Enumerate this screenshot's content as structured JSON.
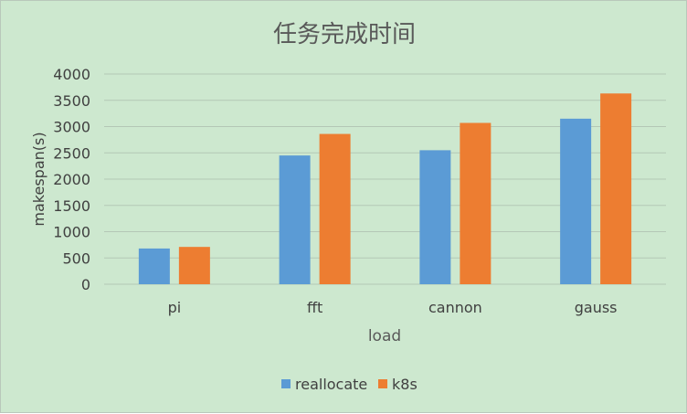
{
  "chart_data": {
    "type": "bar",
    "title": "任务完成时间",
    "xlabel": "load",
    "ylabel": "makespan(s)",
    "categories": [
      "pi",
      "fft",
      "cannon",
      "gauss"
    ],
    "series": [
      {
        "name": "reallocate",
        "color": "#5b9bd5",
        "values": [
          680,
          2450,
          2550,
          3150
        ]
      },
      {
        "name": "k8s",
        "color": "#ed7d31",
        "values": [
          710,
          2860,
          3070,
          3630
        ]
      }
    ],
    "ylim": [
      0,
      4000
    ],
    "yticks": [
      "0",
      "500",
      "1000",
      "1500",
      "2000",
      "2500",
      "3000",
      "3500",
      "4000"
    ],
    "grid": true,
    "legend_position": "bottom"
  },
  "colors": {
    "background": "#cde8cf",
    "gridline": "#b4c7b6",
    "text": "#595959"
  }
}
